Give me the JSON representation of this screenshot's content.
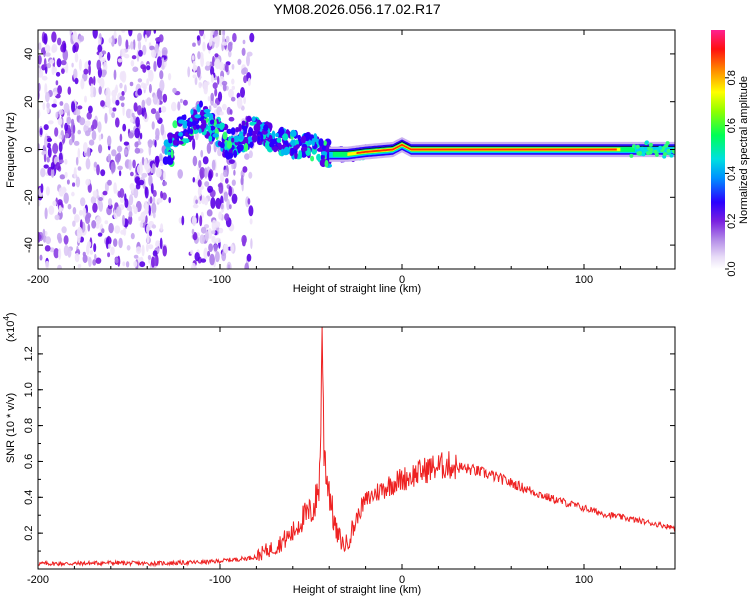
{
  "title": "YM08.2026.056.17.02.R17",
  "chart_data": [
    {
      "type": "heatmap",
      "xlabel": "Height of straight line (km)",
      "ylabel": "Frequency (Hz)",
      "xlim": [
        -200,
        150
      ],
      "ylim": [
        -50,
        50
      ],
      "x_ticks": [
        "-200",
        "-100",
        "0",
        "100"
      ],
      "x_tick_values": [
        -200,
        -100,
        0,
        100
      ],
      "y_ticks": [
        "-40",
        "-20",
        "0",
        "20",
        "40"
      ],
      "y_tick_values": [
        -40,
        -20,
        0,
        20,
        40
      ],
      "colorbar": {
        "label": "Normalized spectral amplitude",
        "range": [
          0,
          1
        ],
        "ticks": [
          "0.0",
          "0.2",
          "0.4",
          "0.6",
          "0.8"
        ],
        "tick_values": [
          0.0,
          0.2,
          0.4,
          0.6,
          0.8
        ],
        "colormap": [
          "#ffffff",
          "#d8bff2",
          "#8a2be2",
          "#2f00ff",
          "#00c8ff",
          "#00ff66",
          "#ffff00",
          "#ff7f00",
          "#ff0000",
          "#ff2080"
        ]
      },
      "features": {
        "noise_region_x": [
          -200,
          -82
        ],
        "noise_gaps_x": [
          [
            -130,
            -115
          ],
          [
            -92,
            -88
          ]
        ],
        "ridge": [
          {
            "x": -125,
            "f": 6
          },
          {
            "x": -110,
            "f": 14
          },
          {
            "x": -95,
            "f": 2
          },
          {
            "x": -80,
            "f": 9
          },
          {
            "x": -70,
            "f": 4
          },
          {
            "x": -60,
            "f": 2
          },
          {
            "x": -50,
            "f": 1
          },
          {
            "x": -40,
            "f": -2
          },
          {
            "x": -30,
            "f": -2
          },
          {
            "x": -20,
            "f": -1
          },
          {
            "x": -5,
            "f": 0
          },
          {
            "x": 0,
            "f": 2
          },
          {
            "x": 5,
            "f": 0
          },
          {
            "x": 150,
            "f": 0
          }
        ]
      }
    },
    {
      "type": "line",
      "xlabel": "Height of straight line (km)",
      "ylabel": "SNR (10 * v/v)",
      "multiplier": "(x10",
      "multiplier_exp": "4",
      "multiplier_close": ")",
      "xlim": [
        -200,
        150
      ],
      "ylim": [
        0,
        1.35
      ],
      "x_ticks": [
        "-200",
        "-100",
        "0",
        "100"
      ],
      "x_tick_values": [
        -200,
        -100,
        0,
        100
      ],
      "y_ticks": [
        "0.2",
        "0.4",
        "0.6",
        "0.8",
        "1.0",
        "1.2"
      ],
      "y_tick_values": [
        0.2,
        0.4,
        0.6,
        0.8,
        1.0,
        1.2
      ],
      "series": [
        {
          "color": "#ee2222",
          "x": [
            -200,
            -180,
            -160,
            -140,
            -120,
            -105,
            -95,
            -85,
            -80,
            -75,
            -70,
            -65,
            -60,
            -57,
            -55,
            -52,
            -50,
            -48,
            -46,
            -45,
            -44,
            -43,
            -42,
            -41,
            -40,
            -38,
            -36,
            -34,
            -32,
            -30,
            -28,
            -26,
            -24,
            -22,
            -20,
            -15,
            -10,
            -5,
            0,
            5,
            10,
            15,
            20,
            25,
            30,
            40,
            50,
            60,
            70,
            80,
            90,
            100,
            110,
            120,
            130,
            140,
            150
          ],
          "values": [
            0.03,
            0.03,
            0.035,
            0.03,
            0.035,
            0.04,
            0.05,
            0.06,
            0.07,
            0.1,
            0.12,
            0.16,
            0.2,
            0.25,
            0.28,
            0.3,
            0.32,
            0.35,
            0.45,
            0.55,
            1.35,
            0.7,
            0.6,
            0.5,
            0.45,
            0.3,
            0.2,
            0.17,
            0.13,
            0.15,
            0.2,
            0.25,
            0.3,
            0.35,
            0.38,
            0.42,
            0.45,
            0.48,
            0.5,
            0.52,
            0.54,
            0.56,
            0.57,
            0.58,
            0.57,
            0.55,
            0.52,
            0.48,
            0.44,
            0.4,
            0.37,
            0.34,
            0.31,
            0.29,
            0.27,
            0.25,
            0.23
          ]
        }
      ]
    }
  ]
}
